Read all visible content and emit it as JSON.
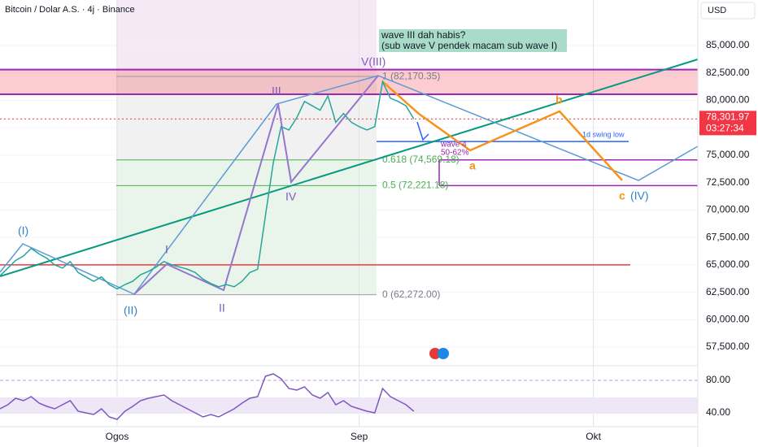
{
  "header": {
    "symbol": "Bitcoin / Dolar A.S. · 4j · Binance",
    "currency": "USD"
  },
  "chart_data": [
    {
      "type": "line",
      "color": "#26a69a",
      "categories": [
        null,
        null,
        null,
        null,
        null,
        null,
        null,
        null,
        null,
        null,
        null,
        null,
        null,
        null,
        null,
        "Ogos",
        null,
        null,
        null,
        null,
        null,
        null,
        null,
        null,
        null,
        null,
        null,
        null,
        null,
        null,
        null,
        null,
        null,
        null,
        null,
        null,
        null,
        null,
        null,
        null,
        null,
        null,
        null,
        null,
        null,
        null,
        "Sep",
        null,
        null,
        null,
        null,
        null,
        null,
        null,
        null,
        null,
        null,
        null,
        null,
        null,
        null,
        null,
        null,
        null,
        null,
        null,
        null,
        null,
        null,
        null,
        null,
        null,
        null,
        null,
        null,
        null,
        "Okt",
        null,
        null,
        null,
        null,
        null,
        null,
        null,
        null,
        null,
        null,
        null,
        null
      ],
      "values": [
        64000,
        64700,
        65400,
        65800,
        66500,
        66000,
        65600,
        65000,
        64700,
        65300,
        64300,
        63900,
        63500,
        63900,
        63200,
        62800,
        63200,
        63500,
        64100,
        64400,
        64800,
        65300,
        65000,
        64800,
        64600,
        64300,
        63700,
        63300,
        63000,
        63200,
        63000,
        63500,
        64300,
        64600,
        69500,
        74300,
        77600,
        77300,
        78400,
        79900,
        79500,
        79100,
        80400,
        78000,
        78800,
        78000,
        77600,
        77300,
        77600,
        81700,
        80200,
        79900,
        79500,
        78301.97,
        null,
        null,
        null,
        null,
        null,
        null,
        null,
        null,
        null,
        null,
        null,
        null,
        null,
        null,
        null,
        null,
        null,
        null,
        null,
        null,
        null,
        null,
        null,
        null,
        null,
        null,
        null,
        null,
        null,
        null,
        null,
        null,
        null,
        null,
        null
      ],
      "ylim": [
        55800,
        89150
      ],
      "yticks": [
        {
          "value": 57500,
          "label": "57,500.00"
        },
        {
          "value": 60000,
          "label": "60,000.00"
        },
        {
          "value": 62500,
          "label": "62,500.00"
        },
        {
          "value": 65000,
          "label": "65,000.00"
        },
        {
          "value": 67500,
          "label": "67,500.00"
        },
        {
          "value": 70000,
          "label": "70,000.00"
        },
        {
          "value": 72500,
          "label": "72,500.00"
        },
        {
          "value": 75000,
          "label": "75,000.00"
        },
        {
          "value": 77500,
          "label": "77,500.00"
        },
        {
          "value": 80000,
          "label": "80,000.00"
        },
        {
          "value": 82500,
          "label": "82,500.00"
        },
        {
          "value": 85000,
          "label": "85,000.00"
        }
      ],
      "last_price": {
        "value": 78301.97,
        "label": "78,301.97"
      },
      "countdown": "03:27:34",
      "grid": true
    },
    {
      "type": "line",
      "color": "#7e57c2",
      "values": [
        45,
        50,
        58,
        55,
        60,
        52,
        48,
        45,
        50,
        55,
        42,
        40,
        38,
        45,
        35,
        32,
        42,
        48,
        55,
        58,
        60,
        62,
        55,
        50,
        45,
        40,
        35,
        38,
        35,
        40,
        45,
        52,
        58,
        60,
        85,
        88,
        82,
        70,
        68,
        72,
        62,
        58,
        65,
        50,
        55,
        48,
        45,
        42,
        40,
        70,
        60,
        55,
        50,
        42
      ],
      "ylim": [
        23,
        96
      ],
      "yticks": [
        {
          "value": 80,
          "label": "80.00"
        },
        {
          "value": 40,
          "label": "40.00"
        }
      ]
    }
  ],
  "annotations": {
    "note": [
      "wave III dah habis?",
      "(sub wave V pendek macam sub wave I)"
    ],
    "fib": [
      {
        "label": "1 (82,170.35)",
        "value": 82170.35
      },
      {
        "label": "0.618 (74,569.18)",
        "value": 74569.18
      },
      {
        "label": "0.5 (72,221.18)",
        "value": 72221.18
      },
      {
        "label": "0 (62,272.00)",
        "value": 62272
      }
    ],
    "waves": {
      "w1": "(I)",
      "w2": "(II)",
      "s1": "I",
      "s2": "II",
      "s3": "III",
      "s4": "IV",
      "top": "V(III)",
      "a": "a",
      "b": "b",
      "c": "c",
      "w4": "(IV)"
    },
    "wave4": [
      "wave 4",
      "50-62%"
    ],
    "swing_low": {
      "label": "1d swing low",
      "value": 76250
    },
    "support": 65000,
    "zone": [
      80550,
      82800
    ]
  }
}
